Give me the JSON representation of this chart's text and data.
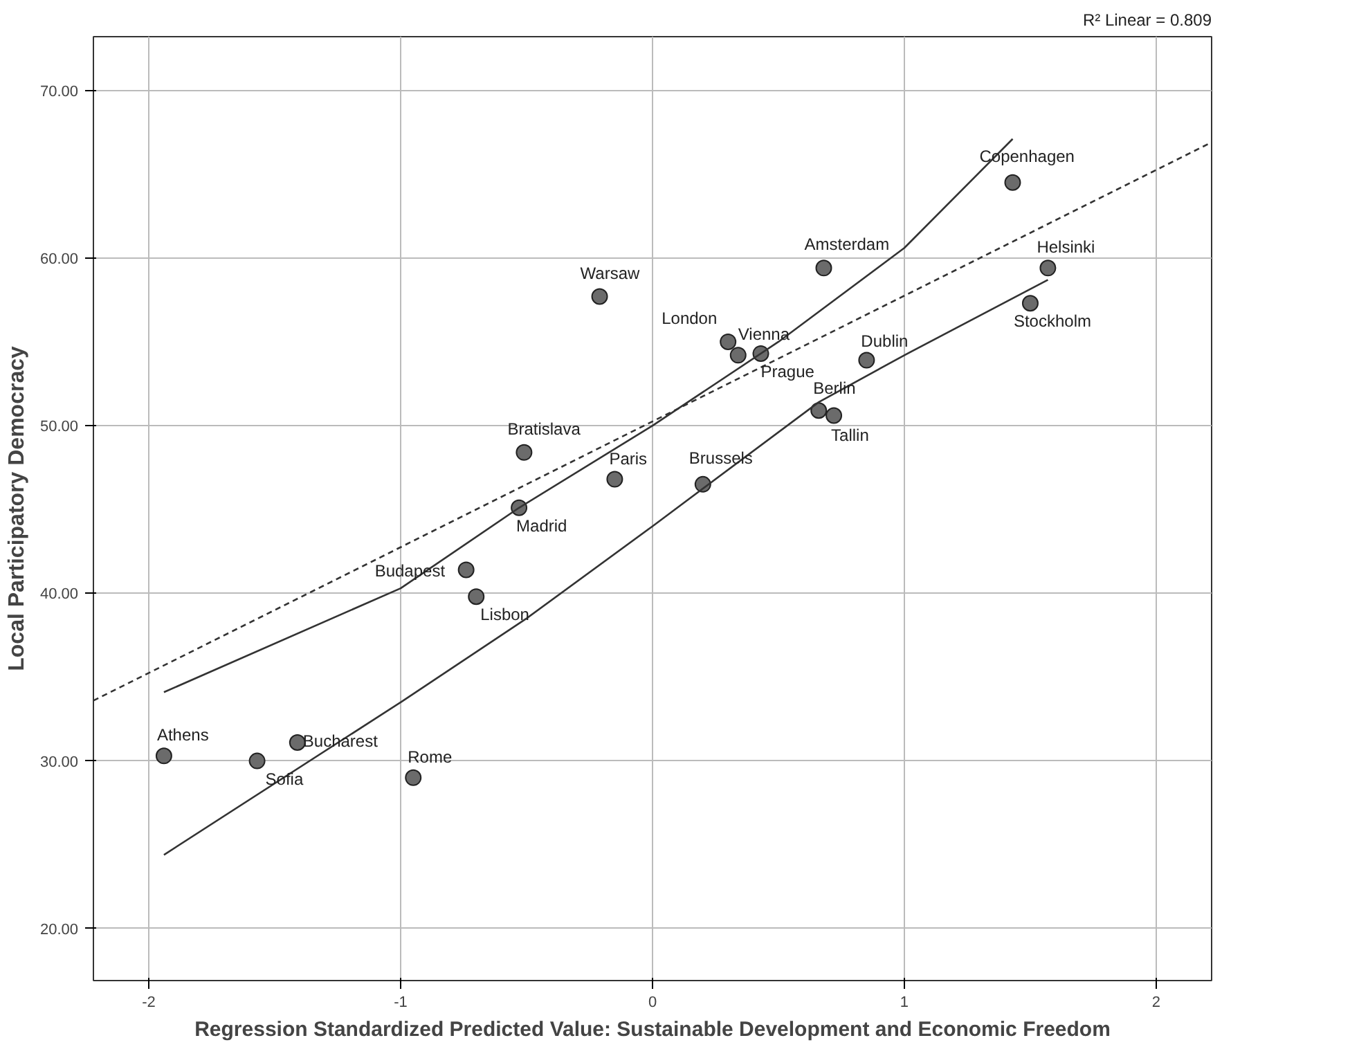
{
  "chart_data": {
    "type": "scatter",
    "xlabel": "Regression Standardized Predicted Value: Sustainable Development and Economic Freedom",
    "ylabel": "Local Participatory Democracy",
    "xlim": [
      -2.22,
      2.22
    ],
    "ylim": [
      16.9,
      73.2
    ],
    "xticks": [
      -2,
      -1,
      0,
      1,
      2
    ],
    "yticks": [
      {
        "value": 20,
        "label": "20.00"
      },
      {
        "value": 30,
        "label": "30.00"
      },
      {
        "value": 40,
        "label": "40.00"
      },
      {
        "value": 50,
        "label": "50.00"
      },
      {
        "value": 60,
        "label": "60.00"
      },
      {
        "value": 70,
        "label": "70.00"
      }
    ],
    "grid": true,
    "marker": "circle",
    "series": [
      {
        "color": "#6b6b6b",
        "x": [
          -1.94,
          -1.57,
          -1.41,
          -0.95,
          -0.74,
          -0.7,
          -0.53,
          -0.51,
          -0.15,
          -0.21,
          0.2,
          0.3,
          0.34,
          0.43,
          0.68,
          0.66,
          0.72,
          0.85,
          1.43,
          1.57,
          1.5
        ],
        "values": [
          30.3,
          30.0,
          31.1,
          29.0,
          41.4,
          39.8,
          45.1,
          48.4,
          46.8,
          57.7,
          46.5,
          55.0,
          54.2,
          54.3,
          59.4,
          50.9,
          50.6,
          53.9,
          64.5,
          59.4,
          57.3
        ]
      },
      {
        "type": "line",
        "marker": "none",
        "line_style": "dashed",
        "color": "#333333",
        "x": [
          -2.22,
          2.22
        ],
        "values": [
          33.6,
          66.9
        ]
      },
      {
        "type": "line",
        "marker": "none",
        "line_style": "solid",
        "color": "#333333",
        "x": [
          -1.94,
          -1.0,
          -0.53,
          0.0,
          0.5,
          1.0,
          1.43
        ],
        "values": [
          34.1,
          40.3,
          45.1,
          50.0,
          55.0,
          60.6,
          67.1
        ]
      },
      {
        "type": "line",
        "marker": "none",
        "line_style": "solid",
        "color": "#333333",
        "x": [
          -1.94,
          -1.0,
          -0.5,
          0.0,
          0.66,
          1.0,
          1.57
        ],
        "values": [
          24.4,
          33.5,
          38.5,
          44.0,
          51.4,
          54.2,
          58.7
        ]
      }
    ],
    "annotations": [
      {
        "text": "Athens",
        "x": -1.94,
        "y": 30.3
      },
      {
        "text": "Sofia",
        "x": -1.57,
        "y": 30.0
      },
      {
        "text": "Bucharest",
        "x": -1.41,
        "y": 31.1
      },
      {
        "text": "Rome",
        "x": -0.95,
        "y": 29.0
      },
      {
        "text": "Budapest",
        "x": -0.74,
        "y": 41.4
      },
      {
        "text": "Lisbon",
        "x": -0.7,
        "y": 39.8
      },
      {
        "text": "Madrid",
        "x": -0.53,
        "y": 45.1
      },
      {
        "text": "Bratislava",
        "x": -0.51,
        "y": 48.4
      },
      {
        "text": "Paris",
        "x": -0.15,
        "y": 46.8
      },
      {
        "text": "Warsaw",
        "x": -0.21,
        "y": 57.7
      },
      {
        "text": "Brussels",
        "x": 0.2,
        "y": 46.5
      },
      {
        "text": "London",
        "x": 0.3,
        "y": 55.0
      },
      {
        "text": "Vienna",
        "x": 0.34,
        "y": 54.2
      },
      {
        "text": "Prague",
        "x": 0.43,
        "y": 54.3
      },
      {
        "text": "Amsterdam",
        "x": 0.68,
        "y": 59.4
      },
      {
        "text": "Berlin",
        "x": 0.66,
        "y": 50.9
      },
      {
        "text": "Tallin",
        "x": 0.72,
        "y": 50.6
      },
      {
        "text": "Dublin",
        "x": 0.85,
        "y": 53.9
      },
      {
        "text": "Copenhagen",
        "x": 1.43,
        "y": 64.5
      },
      {
        "text": "Helsinki",
        "x": 1.57,
        "y": 59.4
      },
      {
        "text": "Stockholm",
        "x": 1.5,
        "y": 57.3
      },
      "R² Linear = 0.809"
    ]
  }
}
